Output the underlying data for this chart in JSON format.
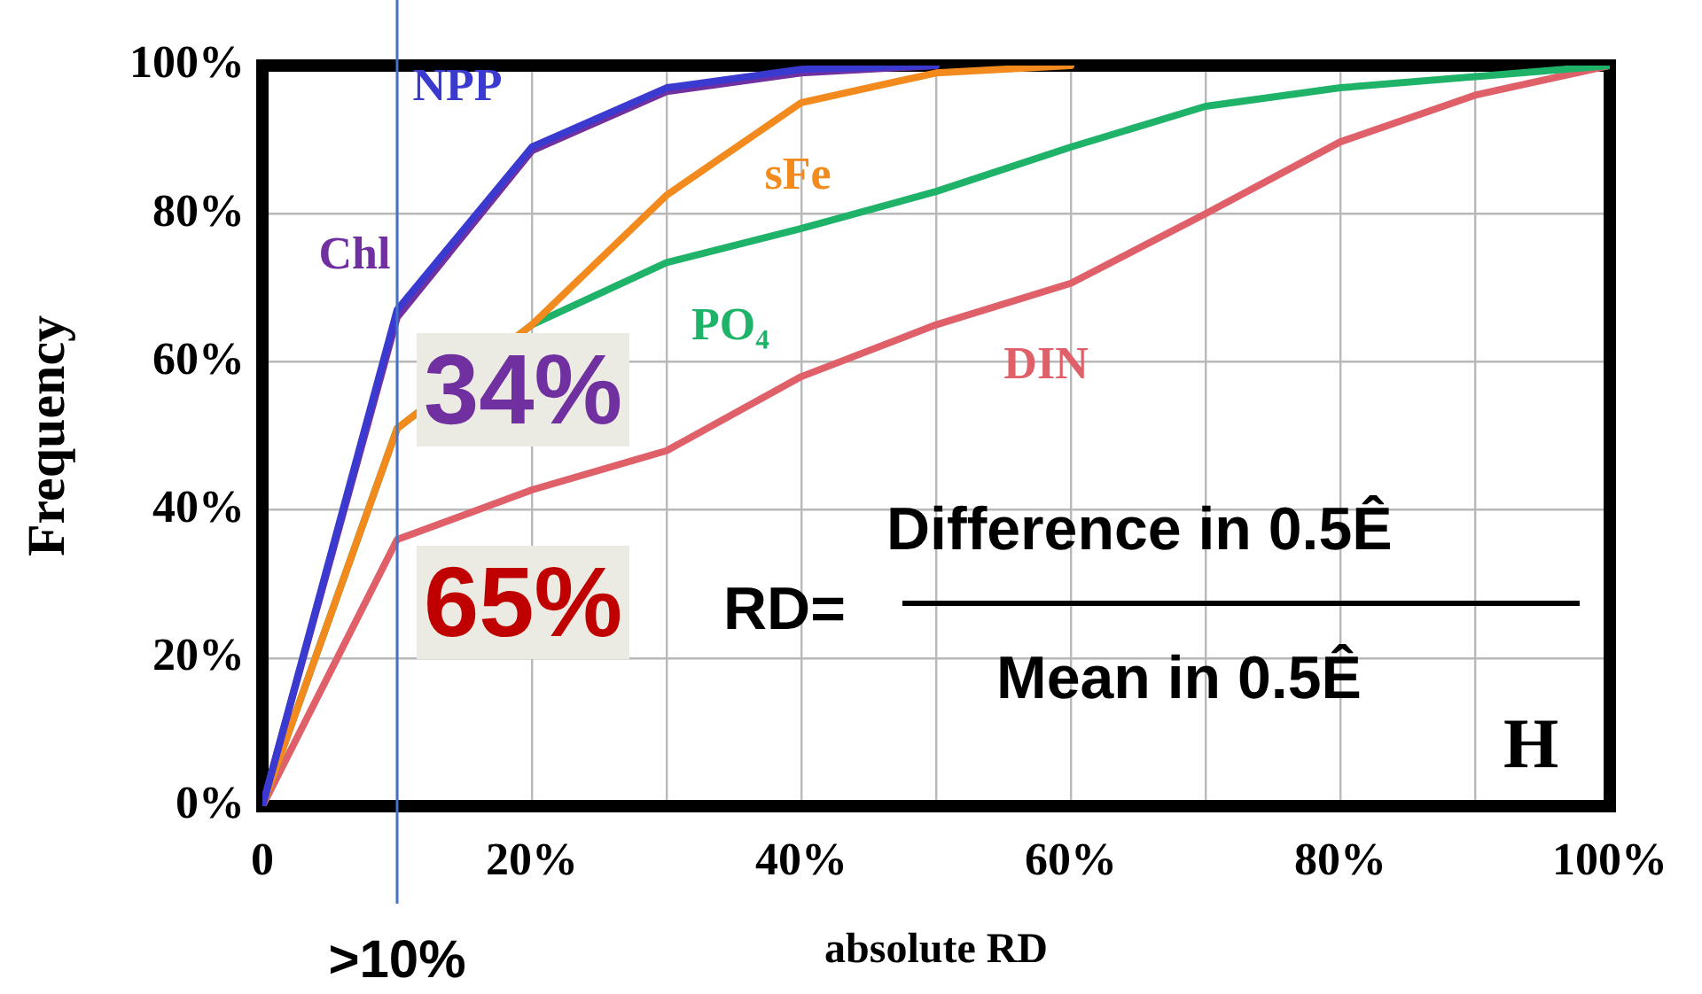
{
  "chart_data": {
    "type": "line",
    "xlabel": "absolute RD",
    "ylabel": "Frequency",
    "x": [
      0,
      10,
      20,
      30,
      40,
      50,
      60,
      70,
      80,
      90,
      100
    ],
    "series": [
      {
        "name": "NPP",
        "color": "#3a3ad0",
        "values": [
          0,
          67,
          89,
          97,
          99.5,
          100,
          null,
          null,
          null,
          null,
          null
        ]
      },
      {
        "name": "Chl",
        "color": "#7030a0",
        "values": [
          0,
          66,
          88.5,
          96.5,
          99,
          100,
          null,
          null,
          null,
          null,
          null
        ]
      },
      {
        "name": "sFe",
        "color": "#f28a1e",
        "values": [
          0,
          51,
          65,
          82.5,
          95,
          99,
          100,
          null,
          null,
          null,
          null
        ]
      },
      {
        "name": "PO₄",
        "color": "#1fb36a",
        "values": [
          0,
          51,
          65,
          73.4,
          78,
          83,
          89,
          94.5,
          97,
          98.5,
          100
        ]
      },
      {
        "name": "DIN",
        "color": "#e0606a",
        "values": [
          0,
          36,
          42.7,
          48,
          58,
          65,
          70.6,
          80,
          89.7,
          96,
          100
        ]
      }
    ],
    "xlim": [
      0,
      100
    ],
    "ylim": [
      0,
      100
    ],
    "xticks": [
      {
        "value": 0,
        "label": "0"
      },
      {
        "value": 10,
        "label": null
      },
      {
        "value": 20,
        "label": "20%"
      },
      {
        "value": 30,
        "label": null
      },
      {
        "value": 40,
        "label": "40%"
      },
      {
        "value": 50,
        "label": null
      },
      {
        "value": 60,
        "label": "60%"
      },
      {
        "value": 70,
        "label": null
      },
      {
        "value": 80,
        "label": "80%"
      },
      {
        "value": 90,
        "label": null
      },
      {
        "value": 100,
        "label": "100%"
      }
    ],
    "yticks": [
      {
        "value": 0,
        "label": "0%"
      },
      {
        "value": 20,
        "label": "20%"
      },
      {
        "value": 40,
        "label": "40%"
      },
      {
        "value": 60,
        "label": "60%"
      },
      {
        "value": 80,
        "label": "80%"
      },
      {
        "value": 100,
        "label": "100%"
      }
    ],
    "grid": true,
    "legend": false,
    "marker": "none",
    "line_style": "solid",
    "ref_lines": [
      {
        "axis": "x",
        "value": 10,
        "label": ">10%",
        "color": "#4472c4"
      }
    ],
    "annotations": [
      "34%",
      "65%",
      "RD=",
      "Difference in 0.5Ê",
      "Mean in 0.5Ê",
      "H"
    ]
  }
}
